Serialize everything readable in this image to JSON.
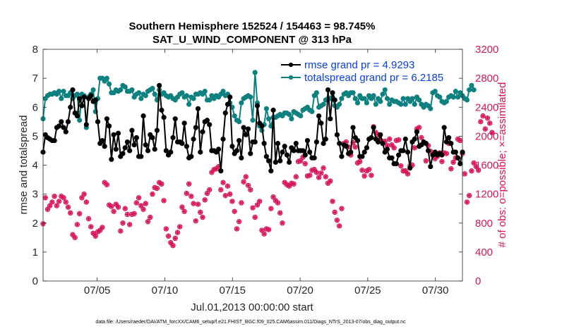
{
  "chart_data": {
    "type": "line",
    "title_line1": "Southern Hemisphere 152524 / 154463 = 98.745%",
    "title_line2": "SAT_U_WIND_COMPONENT @ 313 hPa",
    "ylabel": "rmse and totalspread",
    "y2label": "# of obs: o=possible; ×=assimilated",
    "xlabel": "Jul.01,2013 00:00:00 start",
    "footer": "data file: /Users/raeder/DAI/ATM_forcXX/CAM6_setup/f.e21.FHIST_BGC.f09_025.CAM6assim.011/Diags_NTrS_2013-07/obs_diag_output.nc",
    "xlim": [
      1,
      32
    ],
    "ylim": [
      0,
      8
    ],
    "y2lim": [
      0,
      3200
    ],
    "x_ticks": [
      5,
      10,
      15,
      20,
      25,
      30
    ],
    "x_tick_labels": [
      "07/05",
      "07/10",
      "07/15",
      "07/20",
      "07/25",
      "07/30"
    ],
    "y_ticks": [
      "0",
      "1",
      "2",
      "3",
      "4",
      "5",
      "6",
      "7",
      "8"
    ],
    "y2_ticks": [
      "0",
      "400",
      "800",
      "1200",
      "1600",
      "2000",
      "2400",
      "2800",
      "3200"
    ],
    "colors": {
      "rmse": "#000000",
      "spread": "#0f8080",
      "obs": "#d4145a",
      "legend_text": "#0a3fd6"
    },
    "series": [
      {
        "name": "rmse",
        "legend": "rmse grand pr = 4.9293",
        "axis": "left",
        "values": [
          4.45,
          5.05,
          4.95,
          4.9,
          4.85,
          4.85,
          5.3,
          5.35,
          5.5,
          5.3,
          5.15,
          5.5,
          6.0,
          6.6,
          5.8,
          5.7,
          6.3,
          6.05,
          6.35,
          5.4,
          6.3,
          6.4,
          6.2,
          6.25,
          5.5,
          4.75,
          4.85,
          4.65,
          5.6,
          5.35,
          4.2,
          5.05,
          4.55,
          5.1,
          4.3,
          4.4,
          4.6,
          4.8,
          4.5,
          5.2,
          4.7,
          4.95,
          4.3,
          4.3,
          5.7,
          4.7,
          4.5,
          5.05,
          4.95,
          4.55,
          5.2,
          6.75,
          5.9,
          5.65,
          4.5,
          4.35,
          4.45,
          4.95,
          5.6,
          4.8,
          4.8,
          4.75,
          5.45,
          4.65,
          4.25,
          4.3,
          4.9,
          5.3,
          5.95,
          4.45,
          5.15,
          5.5,
          5.55,
          5.4,
          4.5,
          4.5,
          4.45,
          4.55,
          3.8,
          4.9,
          5.8,
          6.1,
          6.35,
          4.65,
          4.4,
          4.5,
          4.85,
          4.25,
          5.3,
          5.05,
          5.25,
          4.4,
          4.8,
          4.8,
          6.05,
          5.45,
          5.35,
          4.75,
          4.3,
          4.15,
          3.8,
          5.9,
          4.1,
          4.75,
          4.15,
          4.45,
          4.65,
          4.35,
          4.1,
          4.6,
          4.5,
          4.75,
          4.5,
          4.5,
          4.5,
          4.35,
          4.85,
          4.45,
          4.25,
          4.25,
          4.8,
          5.7,
          5.45,
          4.75,
          4.9,
          6.6,
          5.6,
          6.5,
          6.25,
          5.05,
          4.75,
          4.3,
          4.7,
          4.65,
          4.4,
          4.45,
          5.3,
          4.95,
          4.85,
          4.3,
          4.3,
          4.45,
          4.6,
          4.9,
          4.95,
          5.3,
          4.9,
          4.8,
          5.05,
          4.75,
          4.45,
          4.55,
          4.25,
          4.25,
          4.05,
          4.05,
          4.35,
          4.5,
          4.5,
          4.9,
          4.45,
          3.9,
          4.8,
          4.9,
          5.15,
          4.65,
          4.7,
          4.8,
          4.75,
          4.5,
          3.95,
          4.35,
          4.45,
          4.35,
          4.4,
          4.35,
          5.3,
          4.8,
          4.95,
          4.75,
          4.45,
          4.45,
          4.25,
          4.05,
          4.45
        ]
      },
      {
        "name": "totalspread",
        "legend": "totalspread grand pr = 6.2185",
        "axis": "left",
        "values": [
          5.6,
          6.3,
          6.4,
          6.45,
          6.45,
          6.5,
          6.45,
          6.55,
          6.3,
          6.55,
          6.4,
          6.4,
          6.5,
          6.3,
          6.4,
          6.45,
          5.55,
          6.45,
          6.4,
          5.3,
          6.35,
          6.45,
          6.6,
          5.85,
          6.3,
          7.0,
          7.0,
          6.9,
          7.0,
          6.8,
          6.5,
          6.5,
          6.6,
          6.55,
          6.6,
          6.75,
          6.7,
          6.55,
          6.55,
          6.6,
          6.35,
          6.45,
          6.5,
          6.3,
          6.45,
          6.4,
          6.55,
          6.6,
          6.65,
          6.45,
          6.25,
          6.6,
          6.45,
          6.5,
          6.4,
          6.35,
          6.4,
          6.3,
          6.25,
          6.35,
          6.45,
          6.5,
          6.35,
          6.4,
          6.1,
          6.35,
          6.3,
          6.45,
          6.45,
          6.5,
          6.45,
          6.55,
          6.25,
          6.25,
          6.4,
          6.3,
          6.4,
          6.35,
          6.45,
          6.55,
          6.4,
          6.45,
          6.15,
          6.0,
          5.7,
          5.55,
          5.5,
          6.15,
          6.3,
          6.35,
          6.4,
          6.35,
          5.55,
          7.2,
          6.15,
          5.35,
          5.2,
          5.4,
          5.95,
          5.6,
          5.35,
          5.65,
          5.65,
          5.7,
          5.75,
          5.7,
          5.8,
          5.8,
          5.75,
          5.6,
          5.85,
          5.8,
          5.75,
          5.7,
          5.9,
          5.95,
          6.0,
          5.9,
          5.85,
          6.4,
          6.5,
          6.0,
          6.05,
          6.1,
          6.25,
          6.3,
          6.3,
          6.35,
          6.05,
          6.0,
          6.1,
          6.3,
          6.45,
          6.5,
          6.4,
          6.5,
          6.5,
          6.3,
          6.15,
          6.4,
          6.3,
          6.3,
          6.15,
          6.4,
          6.3,
          6.4,
          6.1,
          6.3,
          6.2,
          6.45,
          6.6,
          6.3,
          6.1,
          6.25,
          6.2,
          6.2,
          6.15,
          6.1,
          6.3,
          6.1,
          6.3,
          6.2,
          6.3,
          6.1,
          6.35,
          6.25,
          6.1,
          6.0,
          6.1,
          6.05,
          5.95,
          6.5,
          6.55,
          6.4,
          6.35,
          6.2,
          6.15,
          6.2,
          6.35,
          6.4,
          6.35,
          6.55,
          6.35,
          6.5,
          6.4,
          6.3,
          6.25,
          6.6,
          6.75,
          6.6
        ]
      },
      {
        "name": "obs",
        "axis": "right",
        "values": [
          790,
          1150,
          990,
          1040,
          1090,
          1170,
          1040,
          1100,
          1170,
          1150,
          1090,
          1020,
          940,
          640,
          600,
          780,
          930,
          1150,
          1200,
          1090,
          860,
          750,
          660,
          620,
          680,
          700,
          740,
          1360,
          1330,
          1050,
          1030,
          960,
          1060,
          1020,
          690,
          800,
          1000,
          920,
          780,
          920,
          930,
          1080,
          1150,
          1040,
          990,
          1070,
          820,
          880,
          1200,
          1290,
          1280,
          1360,
          1340,
          1110,
          720,
          620,
          530,
          490,
          590,
          670,
          750,
          1020,
          960,
          1210,
          1340,
          1170,
          1070,
          830,
          1060,
          950,
          880,
          1120,
          1210,
          1260,
          1500,
          1540,
          1550,
          1580,
          1260,
          1360,
          1180,
          1310,
          1200,
          1100,
          960,
          720,
          820,
          1080,
          1370,
          1440,
          1320,
          1260,
          1010,
          880,
          1050,
          1100,
          700,
          650,
          720,
          710,
          1000,
          1160,
          1110,
          1080,
          940,
          800,
          1360,
          1330,
          1310,
          1350,
          1340,
          1440,
          1650,
          1660,
          1710,
          1620,
          1450,
          1460,
          1530,
          1540,
          1500,
          1430,
          1490,
          1560,
          1440,
          1350,
          1380,
          1100,
          950,
          840,
          760,
          1000,
          1900,
          1920,
          1850,
          1740,
          1910,
          1850,
          1630,
          1650,
          1530,
          1450,
          1520,
          1540,
          1460,
          2130,
          2050,
          2020,
          1950,
          1920,
          1930,
          1870,
          1960,
          1880,
          1840,
          1940,
          1950,
          1590,
          1520,
          1520,
          1480,
          1590,
          1600,
          1840,
          2100,
          2120,
          1980,
          1910,
          1660,
          1870,
          1790,
          1740,
          1690,
          1720,
          1770,
          1650,
          1770,
          1760,
          1900,
          1550,
          1640,
          1700,
          1960,
          1940,
          1760,
          1480,
          1090,
          1180,
          1520,
          1630,
          1580,
          1530,
          2200,
          2280,
          2100,
          2250,
          2180,
          2050
        ]
      }
    ]
  }
}
